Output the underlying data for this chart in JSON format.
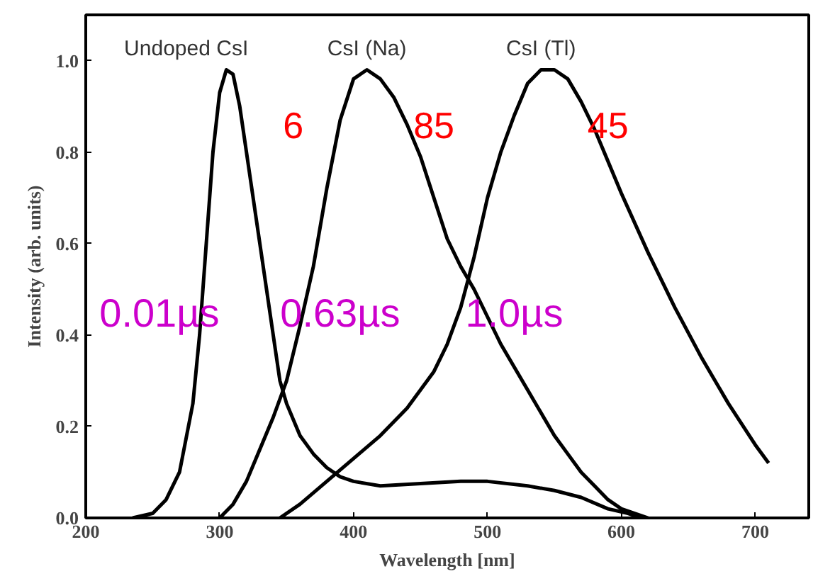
{
  "chart_data": {
    "type": "line",
    "xlabel": "Wavelength [nm]",
    "ylabel": "Intensity (arb. units)",
    "xlim": [
      200,
      740
    ],
    "ylim": [
      0,
      1.1
    ],
    "xticks": [
      200,
      300,
      400,
      500,
      600,
      700
    ],
    "yticks": [
      {
        "value": 0,
        "label": "0.0"
      },
      {
        "value": 0.2,
        "label": "0.2"
      },
      {
        "value": 0.4,
        "label": "0.4"
      },
      {
        "value": 0.6,
        "label": "0.6"
      },
      {
        "value": 0.8,
        "label": "0.8"
      },
      {
        "value": 1,
        "label": "1.0"
      }
    ],
    "grid": false,
    "legend": "top",
    "marker": "none",
    "line_style": "solid",
    "series": [
      {
        "name": "Undoped CsI",
        "color": "#000000",
        "x": [
          235,
          250,
          260,
          270,
          280,
          285,
          290,
          295,
          300,
          305,
          310,
          315,
          320,
          330,
          340,
          345,
          350,
          360,
          370,
          380,
          390,
          400,
          420,
          450,
          480,
          500,
          530,
          550,
          570,
          590,
          605,
          615
        ],
        "values": [
          0,
          0.01,
          0.04,
          0.1,
          0.25,
          0.4,
          0.6,
          0.8,
          0.93,
          0.98,
          0.97,
          0.9,
          0.8,
          0.6,
          0.4,
          0.3,
          0.25,
          0.18,
          0.14,
          0.11,
          0.09,
          0.08,
          0.07,
          0.075,
          0.08,
          0.08,
          0.07,
          0.06,
          0.045,
          0.02,
          0.01,
          0
        ]
      },
      {
        "name": "CsI (Na)",
        "color": "#000000",
        "x": [
          300,
          310,
          320,
          330,
          340,
          350,
          360,
          370,
          380,
          390,
          400,
          410,
          420,
          430,
          440,
          450,
          460,
          470,
          480,
          490,
          500,
          510,
          520,
          530,
          540,
          550,
          560,
          570,
          580,
          590,
          600,
          610,
          620
        ],
        "values": [
          0,
          0.03,
          0.08,
          0.15,
          0.22,
          0.3,
          0.42,
          0.55,
          0.72,
          0.87,
          0.96,
          0.98,
          0.96,
          0.92,
          0.86,
          0.79,
          0.7,
          0.61,
          0.55,
          0.5,
          0.44,
          0.38,
          0.33,
          0.28,
          0.23,
          0.18,
          0.14,
          0.1,
          0.07,
          0.04,
          0.02,
          0.01,
          0
        ]
      },
      {
        "name": "CsI (Tl)",
        "color": "#000000",
        "x": [
          345,
          360,
          380,
          400,
          420,
          440,
          460,
          470,
          480,
          490,
          500,
          510,
          520,
          530,
          540,
          550,
          560,
          570,
          580,
          590,
          600,
          620,
          640,
          660,
          680,
          700,
          710
        ],
        "values": [
          0,
          0.03,
          0.08,
          0.13,
          0.18,
          0.24,
          0.32,
          0.38,
          0.46,
          0.57,
          0.7,
          0.8,
          0.88,
          0.95,
          0.98,
          0.98,
          0.96,
          0.91,
          0.85,
          0.78,
          0.71,
          0.58,
          0.46,
          0.35,
          0.25,
          0.16,
          0.12
        ]
      }
    ],
    "annotations": [
      "6",
      "85",
      "45",
      "0.01µs",
      "0.63µs",
      "1.0µs"
    ]
  }
}
